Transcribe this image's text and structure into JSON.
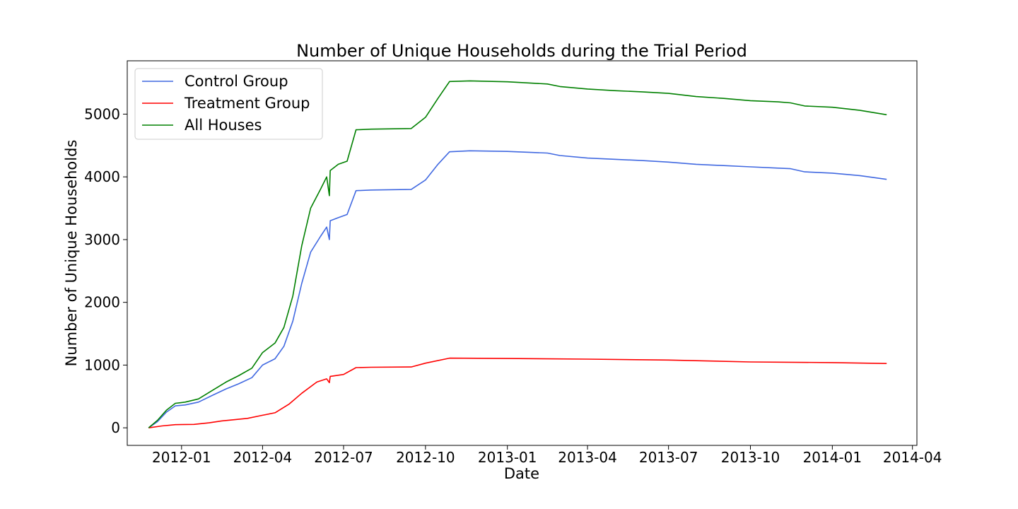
{
  "chart_data": {
    "type": "line",
    "title": "Number of Unique Households during the Trial Period",
    "xlabel": "Date",
    "ylabel": "Number of Unique Households",
    "x_range": [
      "2011-11-01",
      "2014-04-06"
    ],
    "ylim": [
      -280,
      5850
    ],
    "x_ticks": [
      {
        "date": "2012-01-01",
        "label": "2012-01"
      },
      {
        "date": "2012-04-01",
        "label": "2012-04"
      },
      {
        "date": "2012-07-01",
        "label": "2012-07"
      },
      {
        "date": "2012-10-01",
        "label": "2012-10"
      },
      {
        "date": "2013-01-01",
        "label": "2013-01"
      },
      {
        "date": "2013-04-01",
        "label": "2013-04"
      },
      {
        "date": "2013-07-01",
        "label": "2013-07"
      },
      {
        "date": "2013-10-01",
        "label": "2013-10"
      },
      {
        "date": "2014-01-01",
        "label": "2014-01"
      },
      {
        "date": "2014-04-01",
        "label": "2014-04"
      }
    ],
    "y_ticks": [
      0,
      1000,
      2000,
      3000,
      4000,
      5000
    ],
    "grid": false,
    "legend_position": "top-left",
    "series": [
      {
        "name": "Control Group",
        "color": "#4169e1",
        "points": [
          [
            "2011-11-25",
            0
          ],
          [
            "2011-12-05",
            100
          ],
          [
            "2011-12-15",
            250
          ],
          [
            "2011-12-25",
            350
          ],
          [
            "2012-01-05",
            365
          ],
          [
            "2012-01-20",
            410
          ],
          [
            "2012-02-05",
            520
          ],
          [
            "2012-02-20",
            620
          ],
          [
            "2012-03-05",
            700
          ],
          [
            "2012-03-20",
            800
          ],
          [
            "2012-04-01",
            1000
          ],
          [
            "2012-04-15",
            1100
          ],
          [
            "2012-04-25",
            1300
          ],
          [
            "2012-05-05",
            1700
          ],
          [
            "2012-05-15",
            2300
          ],
          [
            "2012-05-25",
            2800
          ],
          [
            "2012-06-05",
            3050
          ],
          [
            "2012-06-12",
            3200
          ],
          [
            "2012-06-15",
            3000
          ],
          [
            "2012-06-16",
            3300
          ],
          [
            "2012-06-25",
            3350
          ],
          [
            "2012-07-05",
            3400
          ],
          [
            "2012-07-15",
            3780
          ],
          [
            "2012-08-01",
            3790
          ],
          [
            "2012-09-15",
            3800
          ],
          [
            "2012-10-01",
            3950
          ],
          [
            "2012-10-15",
            4200
          ],
          [
            "2012-10-28",
            4400
          ],
          [
            "2012-11-20",
            4415
          ],
          [
            "2013-01-01",
            4405
          ],
          [
            "2013-02-15",
            4380
          ],
          [
            "2013-03-01",
            4340
          ],
          [
            "2013-04-01",
            4300
          ],
          [
            "2013-05-01",
            4280
          ],
          [
            "2013-06-01",
            4260
          ],
          [
            "2013-07-01",
            4235
          ],
          [
            "2013-08-01",
            4200
          ],
          [
            "2013-09-01",
            4180
          ],
          [
            "2013-10-01",
            4160
          ],
          [
            "2013-11-01",
            4140
          ],
          [
            "2013-11-15",
            4130
          ],
          [
            "2013-12-01",
            4080
          ],
          [
            "2014-01-01",
            4060
          ],
          [
            "2014-02-01",
            4020
          ],
          [
            "2014-03-03",
            3960
          ]
        ]
      },
      {
        "name": "Treatment Group",
        "color": "#ff0000",
        "points": [
          [
            "2011-11-25",
            0
          ],
          [
            "2011-12-10",
            30
          ],
          [
            "2011-12-25",
            50
          ],
          [
            "2012-01-15",
            55
          ],
          [
            "2012-02-01",
            80
          ],
          [
            "2012-02-15",
            110
          ],
          [
            "2012-03-01",
            130
          ],
          [
            "2012-03-15",
            150
          ],
          [
            "2012-04-01",
            200
          ],
          [
            "2012-04-15",
            240
          ],
          [
            "2012-05-01",
            380
          ],
          [
            "2012-05-15",
            550
          ],
          [
            "2012-06-01",
            730
          ],
          [
            "2012-06-12",
            780
          ],
          [
            "2012-06-15",
            720
          ],
          [
            "2012-06-16",
            820
          ],
          [
            "2012-07-01",
            850
          ],
          [
            "2012-07-15",
            960
          ],
          [
            "2012-08-01",
            965
          ],
          [
            "2012-09-15",
            970
          ],
          [
            "2012-10-01",
            1030
          ],
          [
            "2012-10-28",
            1110
          ],
          [
            "2013-01-01",
            1105
          ],
          [
            "2013-04-01",
            1095
          ],
          [
            "2013-07-01",
            1080
          ],
          [
            "2013-10-01",
            1050
          ],
          [
            "2014-01-01",
            1040
          ],
          [
            "2014-03-03",
            1025
          ]
        ]
      },
      {
        "name": "All Houses",
        "color": "#008000",
        "points": [
          [
            "2011-11-25",
            0
          ],
          [
            "2011-12-05",
            120
          ],
          [
            "2011-12-15",
            280
          ],
          [
            "2011-12-25",
            390
          ],
          [
            "2012-01-05",
            410
          ],
          [
            "2012-01-20",
            460
          ],
          [
            "2012-02-05",
            600
          ],
          [
            "2012-02-20",
            730
          ],
          [
            "2012-03-05",
            830
          ],
          [
            "2012-03-20",
            950
          ],
          [
            "2012-04-01",
            1200
          ],
          [
            "2012-04-15",
            1350
          ],
          [
            "2012-04-25",
            1600
          ],
          [
            "2012-05-05",
            2100
          ],
          [
            "2012-05-15",
            2900
          ],
          [
            "2012-05-25",
            3500
          ],
          [
            "2012-06-05",
            3800
          ],
          [
            "2012-06-12",
            4000
          ],
          [
            "2012-06-15",
            3700
          ],
          [
            "2012-06-16",
            4100
          ],
          [
            "2012-06-25",
            4200
          ],
          [
            "2012-07-05",
            4250
          ],
          [
            "2012-07-15",
            4750
          ],
          [
            "2012-08-01",
            4760
          ],
          [
            "2012-09-15",
            4770
          ],
          [
            "2012-10-01",
            4950
          ],
          [
            "2012-10-15",
            5250
          ],
          [
            "2012-10-28",
            5520
          ],
          [
            "2012-11-20",
            5530
          ],
          [
            "2013-01-01",
            5515
          ],
          [
            "2013-02-15",
            5480
          ],
          [
            "2013-03-01",
            5440
          ],
          [
            "2013-04-01",
            5400
          ],
          [
            "2013-05-01",
            5375
          ],
          [
            "2013-06-01",
            5355
          ],
          [
            "2013-07-01",
            5330
          ],
          [
            "2013-08-01",
            5280
          ],
          [
            "2013-09-01",
            5250
          ],
          [
            "2013-10-01",
            5215
          ],
          [
            "2013-11-01",
            5195
          ],
          [
            "2013-11-15",
            5180
          ],
          [
            "2013-12-01",
            5130
          ],
          [
            "2014-01-01",
            5110
          ],
          [
            "2014-02-01",
            5060
          ],
          [
            "2014-03-03",
            4990
          ]
        ]
      }
    ]
  }
}
